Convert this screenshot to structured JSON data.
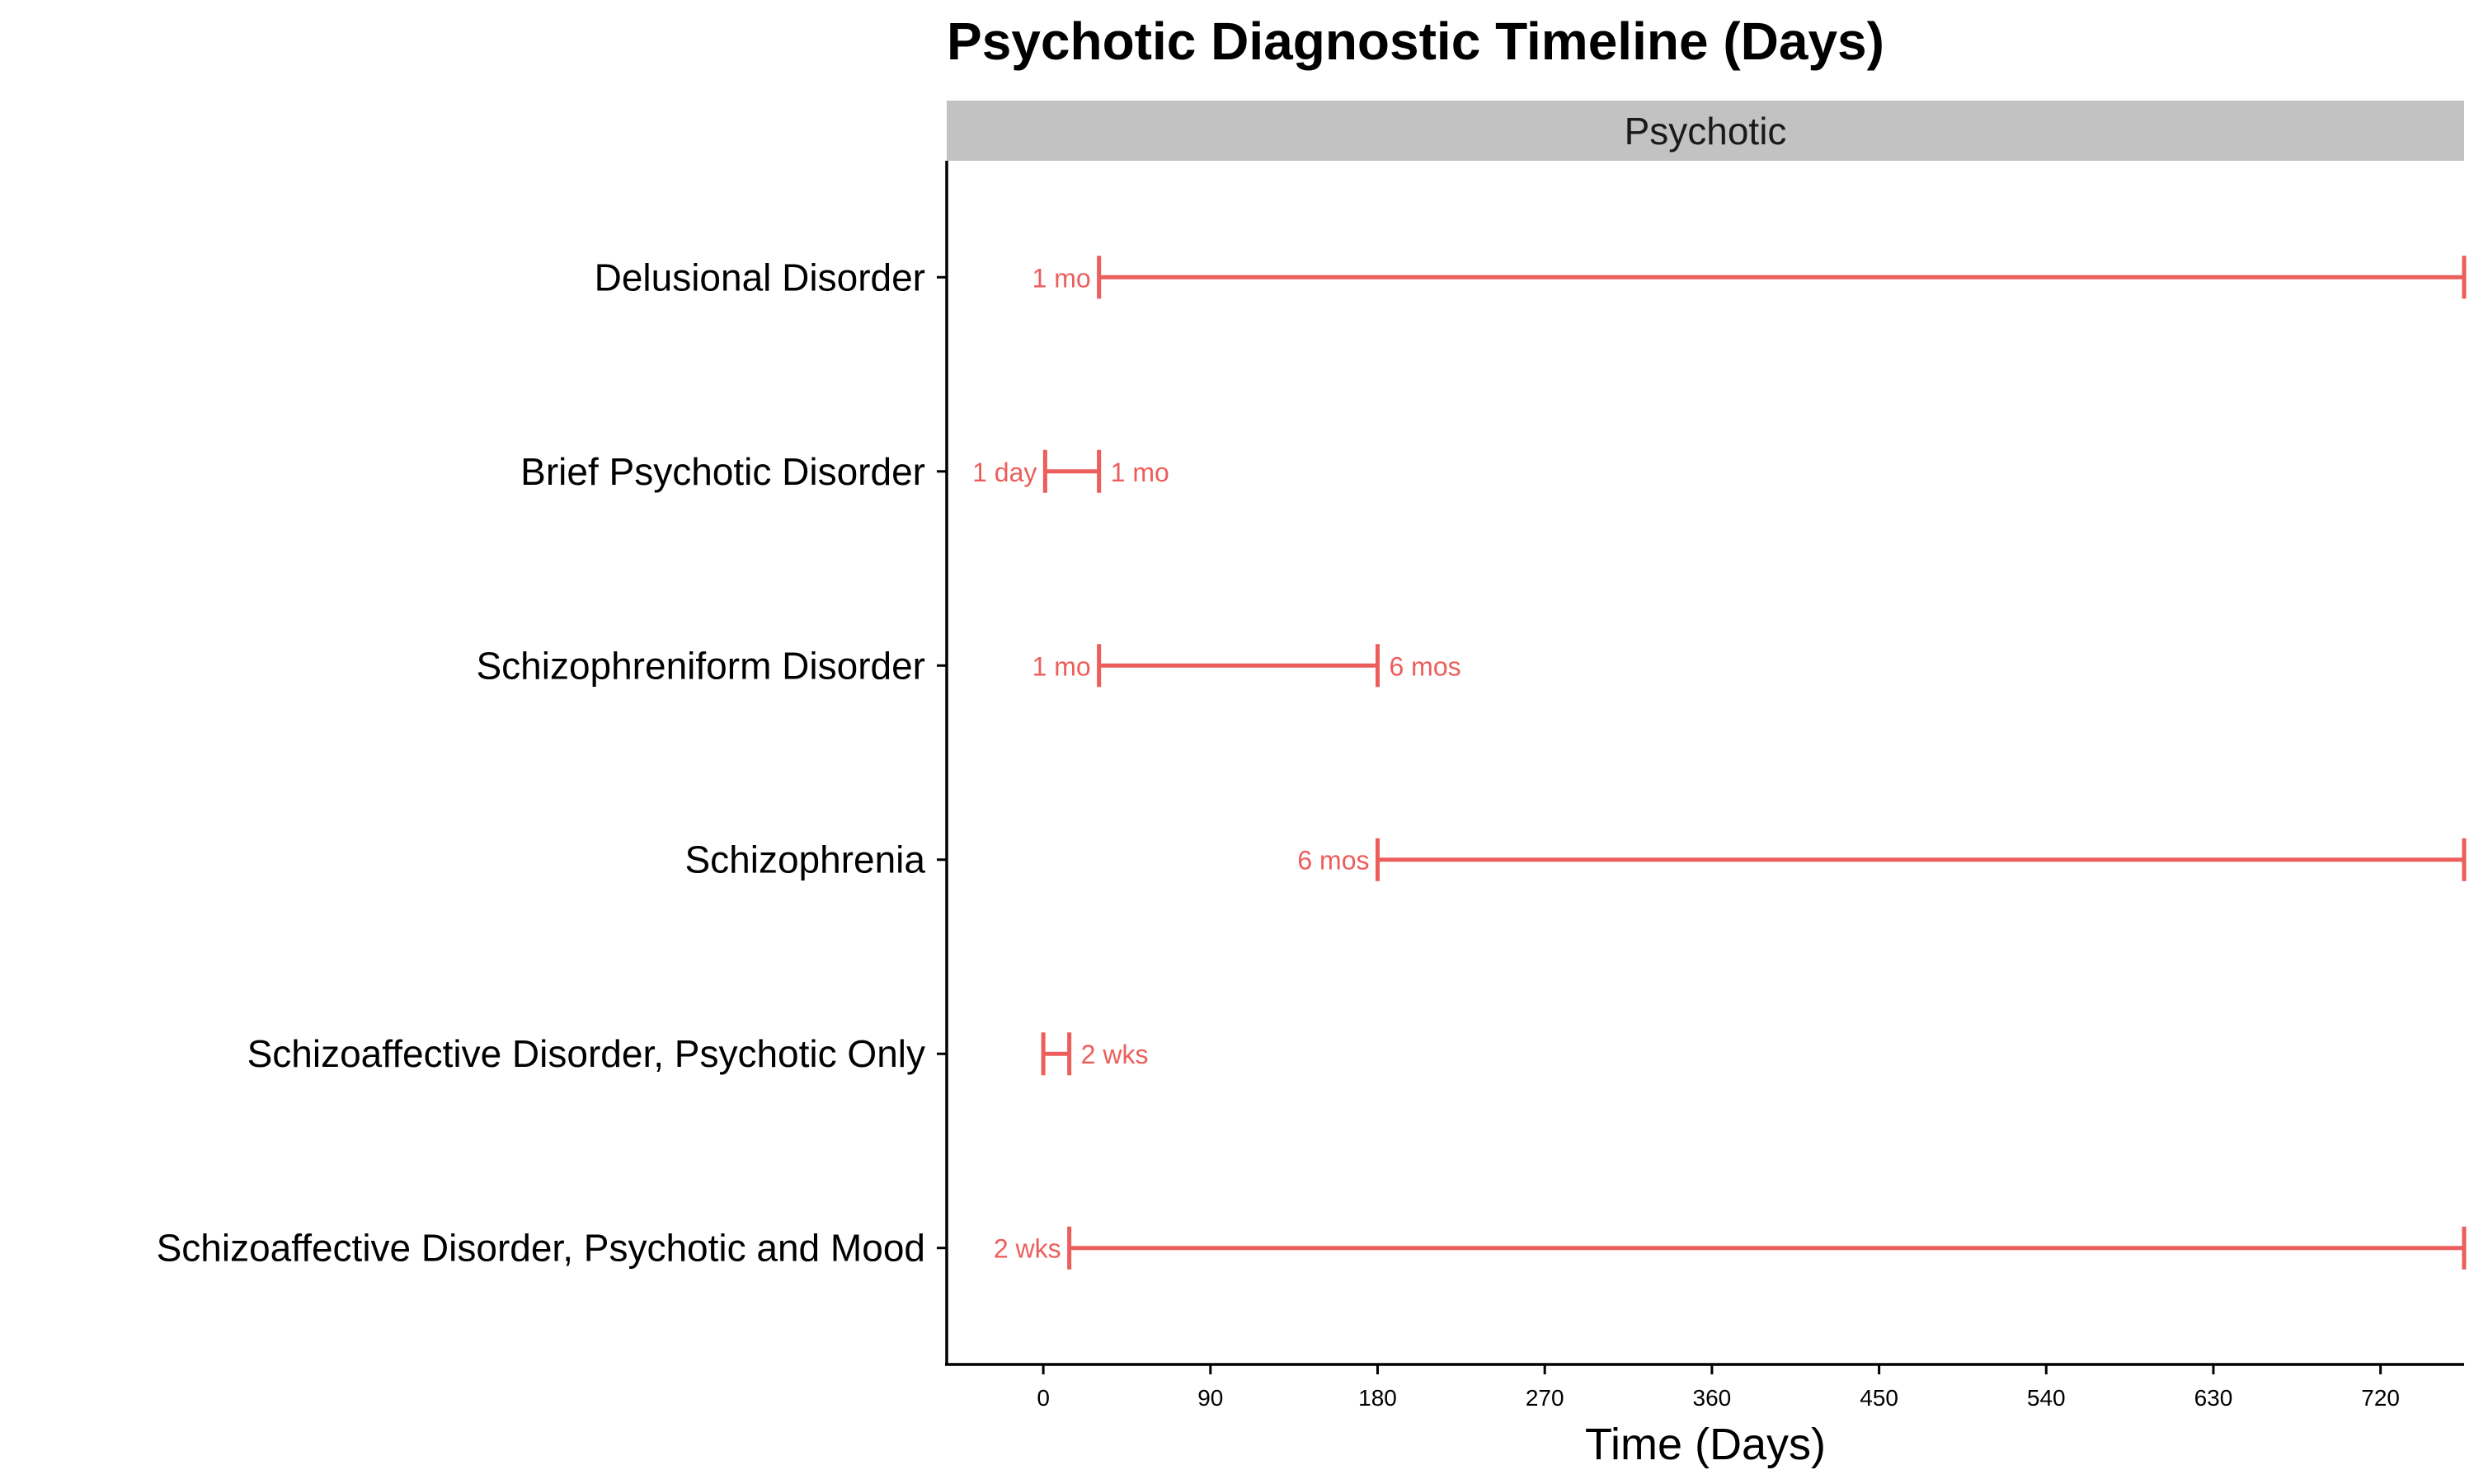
{
  "chart_data": {
    "type": "range",
    "title": "Psychotic Diagnostic Timeline (Days)",
    "panel": "Psychotic",
    "xlabel": "Time (Days)",
    "ylabel": "",
    "xlim": [
      -52,
      765
    ],
    "xticks": [
      0,
      90,
      180,
      270,
      360,
      450,
      540,
      630,
      720
    ],
    "color": "#ec5e5b",
    "grid": false,
    "categories": [
      "Delusional Disorder",
      "Brief Psychotic Disorder",
      "Schizophreniform Disorder",
      "Schizophrenia",
      "Schizoaffective Disorder, Psychotic Only",
      "Schizoaffective Disorder, Psychotic and Mood"
    ],
    "ranges": [
      {
        "category": "Delusional Disorder",
        "start": 30,
        "end": 765,
        "start_label": "1 mo",
        "end_label": ""
      },
      {
        "category": "Brief Psychotic Disorder",
        "start": 1,
        "end": 30,
        "start_label": "1 day",
        "end_label": "1 mo"
      },
      {
        "category": "Schizophreniform Disorder",
        "start": 30,
        "end": 180,
        "start_label": "1 mo",
        "end_label": "6 mos"
      },
      {
        "category": "Schizophrenia",
        "start": 180,
        "end": 765,
        "start_label": "6 mos",
        "end_label": ""
      },
      {
        "category": "Schizoaffective Disorder, Psychotic Only",
        "start": 0,
        "end": 14,
        "start_label": "",
        "end_label": "2 wks"
      },
      {
        "category": "Schizoaffective Disorder, Psychotic and Mood",
        "start": 14,
        "end": 765,
        "start_label": "2 wks",
        "end_label": ""
      }
    ]
  }
}
